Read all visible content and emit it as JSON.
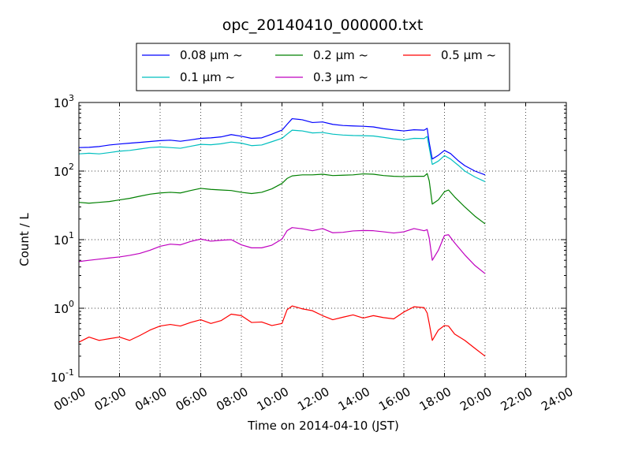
{
  "chart_data": {
    "type": "line",
    "title": "opc_20140410_000000.txt",
    "xlabel": "Time on 2014-04-10 (JST)",
    "ylabel": "Count / L",
    "xlim": [
      0,
      24
    ],
    "ylim": [
      0.1,
      1000
    ],
    "yscale": "log",
    "grid": true,
    "legend_position": "top-center",
    "x_ticks": [
      "00:00",
      "02:00",
      "04:00",
      "06:00",
      "08:00",
      "10:00",
      "12:00",
      "14:00",
      "16:00",
      "18:00",
      "20:00",
      "22:00",
      "24:00"
    ],
    "y_ticks": [
      {
        "base": "10",
        "exp": "-1",
        "value": 0.1
      },
      {
        "base": "10",
        "exp": "0",
        "value": 1
      },
      {
        "base": "10",
        "exp": "1",
        "value": 10
      },
      {
        "base": "10",
        "exp": "2",
        "value": 100
      },
      {
        "base": "10",
        "exp": "3",
        "value": 1000
      }
    ],
    "series": [
      {
        "name": "0.08 μm ~",
        "color": "#0000ff",
        "points": [
          [
            0,
            220
          ],
          [
            0.5,
            222
          ],
          [
            1,
            228
          ],
          [
            1.5,
            240
          ],
          [
            2,
            248
          ],
          [
            2.5,
            255
          ],
          [
            3,
            262
          ],
          [
            3.5,
            270
          ],
          [
            4,
            278
          ],
          [
            4.5,
            282
          ],
          [
            5,
            272
          ],
          [
            5.5,
            285
          ],
          [
            6,
            300
          ],
          [
            6.5,
            305
          ],
          [
            7,
            315
          ],
          [
            7.5,
            340
          ],
          [
            8,
            322
          ],
          [
            8.5,
            300
          ],
          [
            9,
            305
          ],
          [
            9.5,
            345
          ],
          [
            10,
            395
          ],
          [
            10.25,
            480
          ],
          [
            10.5,
            580
          ],
          [
            11,
            560
          ],
          [
            11.5,
            510
          ],
          [
            12,
            520
          ],
          [
            12.5,
            480
          ],
          [
            13,
            462
          ],
          [
            13.5,
            455
          ],
          [
            14,
            450
          ],
          [
            14.5,
            440
          ],
          [
            15,
            415
          ],
          [
            15.5,
            398
          ],
          [
            16,
            385
          ],
          [
            16.5,
            400
          ],
          [
            17,
            395
          ],
          [
            17.15,
            420
          ],
          [
            17.25,
            260
          ],
          [
            17.4,
            150
          ],
          [
            17.7,
            170
          ],
          [
            18,
            200
          ],
          [
            18.3,
            180
          ],
          [
            18.7,
            140
          ],
          [
            19,
            120
          ],
          [
            19.5,
            100
          ],
          [
            20,
            88
          ]
        ]
      },
      {
        "name": "0.1 μm ~",
        "color": "#00bfbf",
        "points": [
          [
            0,
            178
          ],
          [
            0.5,
            182
          ],
          [
            1,
            178
          ],
          [
            1.5,
            186
          ],
          [
            2,
            195
          ],
          [
            2.5,
            200
          ],
          [
            3,
            210
          ],
          [
            3.5,
            220
          ],
          [
            4,
            225
          ],
          [
            4.5,
            220
          ],
          [
            5,
            215
          ],
          [
            5.5,
            230
          ],
          [
            6,
            245
          ],
          [
            6.5,
            242
          ],
          [
            7,
            250
          ],
          [
            7.5,
            265
          ],
          [
            8,
            255
          ],
          [
            8.5,
            235
          ],
          [
            9,
            240
          ],
          [
            9.5,
            268
          ],
          [
            10,
            300
          ],
          [
            10.25,
            345
          ],
          [
            10.5,
            395
          ],
          [
            11,
            385
          ],
          [
            11.5,
            360
          ],
          [
            12,
            365
          ],
          [
            12.5,
            345
          ],
          [
            13,
            335
          ],
          [
            13.5,
            330
          ],
          [
            14,
            328
          ],
          [
            14.5,
            325
          ],
          [
            15,
            310
          ],
          [
            15.5,
            295
          ],
          [
            16,
            285
          ],
          [
            16.5,
            300
          ],
          [
            17,
            298
          ],
          [
            17.15,
            320
          ],
          [
            17.25,
            220
          ],
          [
            17.4,
            125
          ],
          [
            17.7,
            140
          ],
          [
            18,
            168
          ],
          [
            18.3,
            150
          ],
          [
            18.7,
            120
          ],
          [
            19,
            100
          ],
          [
            19.5,
            82
          ],
          [
            20,
            70
          ]
        ]
      },
      {
        "name": "0.2 μm ~",
        "color": "#008000",
        "points": [
          [
            0,
            35
          ],
          [
            0.5,
            34
          ],
          [
            1,
            35
          ],
          [
            1.5,
            36
          ],
          [
            2,
            38
          ],
          [
            2.5,
            40
          ],
          [
            3,
            43
          ],
          [
            3.5,
            46
          ],
          [
            4,
            48
          ],
          [
            4.5,
            49
          ],
          [
            5,
            48
          ],
          [
            5.5,
            52
          ],
          [
            6,
            56
          ],
          [
            6.5,
            54
          ],
          [
            7,
            53
          ],
          [
            7.5,
            52
          ],
          [
            8,
            49
          ],
          [
            8.5,
            47
          ],
          [
            9,
            49
          ],
          [
            9.5,
            55
          ],
          [
            10,
            66
          ],
          [
            10.25,
            78
          ],
          [
            10.5,
            85
          ],
          [
            11,
            88
          ],
          [
            11.5,
            88
          ],
          [
            12,
            90
          ],
          [
            12.5,
            86
          ],
          [
            13,
            87
          ],
          [
            13.5,
            88
          ],
          [
            14,
            91
          ],
          [
            14.5,
            90
          ],
          [
            15,
            86
          ],
          [
            15.5,
            84
          ],
          [
            16,
            83
          ],
          [
            16.5,
            84
          ],
          [
            17,
            84
          ],
          [
            17.15,
            92
          ],
          [
            17.25,
            72
          ],
          [
            17.4,
            33
          ],
          [
            17.7,
            38
          ],
          [
            18,
            50
          ],
          [
            18.2,
            53
          ],
          [
            18.5,
            42
          ],
          [
            19,
            30
          ],
          [
            19.5,
            22
          ],
          [
            20,
            17
          ]
        ]
      },
      {
        "name": "0.3 μm ~",
        "color": "#bf00bf",
        "points": [
          [
            0,
            4.8
          ],
          [
            0.5,
            5.0
          ],
          [
            1,
            5.2
          ],
          [
            1.5,
            5.4
          ],
          [
            2,
            5.6
          ],
          [
            2.5,
            5.9
          ],
          [
            3,
            6.3
          ],
          [
            3.5,
            7.0
          ],
          [
            4,
            8.0
          ],
          [
            4.5,
            8.6
          ],
          [
            5,
            8.4
          ],
          [
            5.5,
            9.4
          ],
          [
            6,
            10.2
          ],
          [
            6.5,
            9.5
          ],
          [
            7,
            9.8
          ],
          [
            7.5,
            10.0
          ],
          [
            8,
            8.4
          ],
          [
            8.5,
            7.6
          ],
          [
            9,
            7.6
          ],
          [
            9.5,
            8.3
          ],
          [
            10,
            10.2
          ],
          [
            10.25,
            13.5
          ],
          [
            10.5,
            15.0
          ],
          [
            11,
            14.4
          ],
          [
            11.5,
            13.5
          ],
          [
            12,
            14.5
          ],
          [
            12.5,
            12.6
          ],
          [
            13,
            12.8
          ],
          [
            13.5,
            13.4
          ],
          [
            14,
            13.6
          ],
          [
            14.5,
            13.5
          ],
          [
            15,
            13.0
          ],
          [
            15.5,
            12.5
          ],
          [
            16,
            13.0
          ],
          [
            16.5,
            14.5
          ],
          [
            17,
            13.5
          ],
          [
            17.15,
            14.0
          ],
          [
            17.25,
            10.5
          ],
          [
            17.4,
            5.0
          ],
          [
            17.7,
            7.0
          ],
          [
            18,
            11.5
          ],
          [
            18.2,
            11.8
          ],
          [
            18.5,
            9.0
          ],
          [
            19,
            6.0
          ],
          [
            19.5,
            4.2
          ],
          [
            20,
            3.2
          ]
        ]
      },
      {
        "name": "0.5 μm ~",
        "color": "#ff0000",
        "points": [
          [
            0,
            0.32
          ],
          [
            0.5,
            0.38
          ],
          [
            1,
            0.34
          ],
          [
            1.5,
            0.36
          ],
          [
            2,
            0.38
          ],
          [
            2.5,
            0.34
          ],
          [
            3,
            0.4
          ],
          [
            3.5,
            0.48
          ],
          [
            4,
            0.55
          ],
          [
            4.5,
            0.58
          ],
          [
            5,
            0.55
          ],
          [
            5.5,
            0.62
          ],
          [
            6,
            0.68
          ],
          [
            6.5,
            0.6
          ],
          [
            7,
            0.66
          ],
          [
            7.5,
            0.82
          ],
          [
            8,
            0.78
          ],
          [
            8.5,
            0.62
          ],
          [
            9,
            0.63
          ],
          [
            9.5,
            0.56
          ],
          [
            10,
            0.6
          ],
          [
            10.25,
            0.95
          ],
          [
            10.5,
            1.08
          ],
          [
            11,
            0.98
          ],
          [
            11.5,
            0.92
          ],
          [
            12,
            0.78
          ],
          [
            12.5,
            0.68
          ],
          [
            13,
            0.74
          ],
          [
            13.5,
            0.8
          ],
          [
            14,
            0.72
          ],
          [
            14.5,
            0.78
          ],
          [
            15,
            0.73
          ],
          [
            15.5,
            0.7
          ],
          [
            16,
            0.88
          ],
          [
            16.5,
            1.05
          ],
          [
            17,
            1.02
          ],
          [
            17.15,
            0.85
          ],
          [
            17.25,
            0.6
          ],
          [
            17.4,
            0.34
          ],
          [
            17.7,
            0.48
          ],
          [
            18,
            0.56
          ],
          [
            18.2,
            0.55
          ],
          [
            18.5,
            0.42
          ],
          [
            19,
            0.34
          ],
          [
            19.5,
            0.26
          ],
          [
            20,
            0.2
          ]
        ]
      }
    ]
  }
}
